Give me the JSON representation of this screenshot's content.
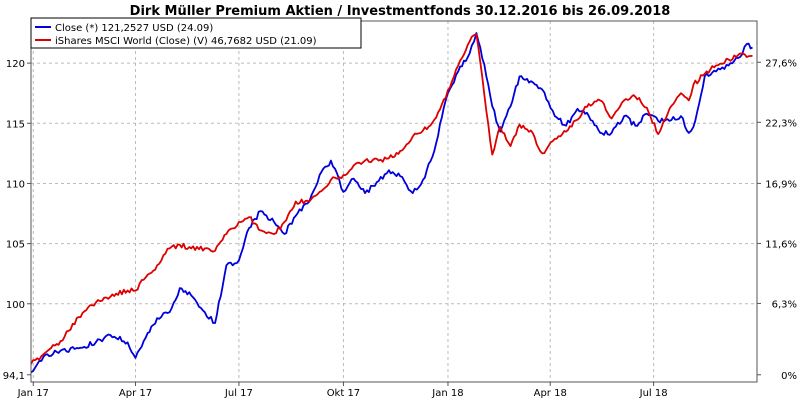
{
  "chart_data": {
    "type": "line",
    "title": "Dirk Müller Premium Aktien / Investmentfonds 30.12.2016 bis 26.09.2018",
    "xlabel": "",
    "ylabel": "",
    "x_ticks": [
      "Jan 17",
      "Apr 17",
      "Jul 17",
      "Okt 17",
      "Jan 18",
      "Apr 18",
      "Jul 18"
    ],
    "x_tick_dates": [
      "2017-01-01",
      "2017-04-01",
      "2017-07-01",
      "2017-10-01",
      "2018-01-01",
      "2018-04-01",
      "2018-07-01"
    ],
    "xlim": [
      "2016-12-30",
      "2018-09-30"
    ],
    "y_left_ticks": [
      94.1,
      100,
      105,
      110,
      115,
      120
    ],
    "y_left_tick_labels": [
      "94,1",
      "100",
      "105",
      "110",
      "115",
      "120"
    ],
    "ylim": [
      93.5,
      123.5
    ],
    "y_right_ticks": [
      0,
      6.3,
      11.6,
      16.9,
      22.3,
      27.6
    ],
    "y_right_tick_labels": [
      "0%",
      "6,3%",
      "11,6%",
      "16,9%",
      "22,3%",
      "27,6%"
    ],
    "grid": true,
    "legend_position": "top-left",
    "series": [
      {
        "name": "Close (*) 121,2527 USD (24.09)",
        "color": "#0000dd",
        "dates": [
          "2016-12-30",
          "2017-01-10",
          "2017-01-25",
          "2017-02-10",
          "2017-02-25",
          "2017-03-10",
          "2017-03-25",
          "2017-04-01",
          "2017-04-10",
          "2017-04-20",
          "2017-05-01",
          "2017-05-10",
          "2017-05-20",
          "2017-06-01",
          "2017-06-10",
          "2017-06-20",
          "2017-07-01",
          "2017-07-10",
          "2017-07-20",
          "2017-08-01",
          "2017-08-10",
          "2017-08-20",
          "2017-09-01",
          "2017-09-10",
          "2017-09-20",
          "2017-10-01",
          "2017-10-10",
          "2017-10-20",
          "2017-11-01",
          "2017-11-10",
          "2017-11-20",
          "2017-12-01",
          "2017-12-10",
          "2017-12-20",
          "2017-12-30",
          "2018-01-10",
          "2018-01-20",
          "2018-01-26",
          "2018-02-02",
          "2018-02-09",
          "2018-02-16",
          "2018-02-25",
          "2018-03-05",
          "2018-03-15",
          "2018-03-25",
          "2018-04-05",
          "2018-04-15",
          "2018-04-25",
          "2018-05-05",
          "2018-05-15",
          "2018-05-25",
          "2018-06-05",
          "2018-06-15",
          "2018-06-25",
          "2018-07-05",
          "2018-07-15",
          "2018-07-25",
          "2018-08-01",
          "2018-08-05",
          "2018-08-15",
          "2018-08-25",
          "2018-09-05",
          "2018-09-15",
          "2018-09-21",
          "2018-09-26"
        ],
        "values": [
          94.3,
          95.6,
          96.1,
          96.3,
          96.8,
          97.4,
          96.8,
          95.5,
          97.2,
          98.8,
          99.3,
          101.3,
          100.7,
          99.3,
          98.4,
          103.2,
          103.6,
          106.3,
          107.7,
          106.8,
          105.8,
          107.3,
          108.5,
          110.7,
          111.9,
          109.3,
          110.4,
          109.2,
          110.2,
          111.1,
          110.6,
          109.2,
          110.3,
          112.7,
          116.9,
          119.3,
          120.8,
          122.5,
          119.9,
          116.4,
          114.3,
          116.4,
          118.9,
          118.5,
          117.8,
          115.6,
          114.8,
          116.2,
          115.6,
          114.2,
          114.2,
          115.6,
          114.8,
          115.8,
          115.2,
          115.2,
          115.6,
          114.2,
          114.7,
          118.9,
          119.3,
          119.8,
          120.5,
          121.6,
          121.3
        ]
      },
      {
        "name": "iShares MSCI World (Close) (V) 46,7682 USD (21.09)",
        "color": "#dd0000",
        "dates": [
          "2016-12-30",
          "2017-01-10",
          "2017-01-25",
          "2017-02-10",
          "2017-02-25",
          "2017-03-10",
          "2017-03-25",
          "2017-04-01",
          "2017-04-10",
          "2017-04-20",
          "2017-05-01",
          "2017-05-10",
          "2017-05-20",
          "2017-06-01",
          "2017-06-10",
          "2017-06-20",
          "2017-07-01",
          "2017-07-10",
          "2017-07-20",
          "2017-08-01",
          "2017-08-10",
          "2017-08-20",
          "2017-09-01",
          "2017-09-10",
          "2017-09-20",
          "2017-10-01",
          "2017-10-10",
          "2017-10-20",
          "2017-11-01",
          "2017-11-10",
          "2017-11-20",
          "2017-12-01",
          "2017-12-10",
          "2017-12-20",
          "2017-12-30",
          "2018-01-10",
          "2018-01-20",
          "2018-01-26",
          "2018-02-02",
          "2018-02-09",
          "2018-02-16",
          "2018-02-25",
          "2018-03-05",
          "2018-03-15",
          "2018-03-25",
          "2018-04-05",
          "2018-04-15",
          "2018-04-25",
          "2018-05-05",
          "2018-05-15",
          "2018-05-25",
          "2018-06-05",
          "2018-06-15",
          "2018-06-25",
          "2018-07-05",
          "2018-07-15",
          "2018-07-25",
          "2018-08-01",
          "2018-08-05",
          "2018-08-15",
          "2018-08-25",
          "2018-09-05",
          "2018-09-15",
          "2018-09-21",
          "2018-09-26"
        ],
        "values": [
          95.0,
          95.8,
          96.9,
          98.9,
          100.1,
          100.6,
          101.1,
          101.1,
          102.2,
          103.2,
          104.6,
          104.9,
          104.6,
          104.6,
          104.4,
          105.8,
          106.8,
          107.2,
          106.1,
          105.8,
          106.8,
          108.5,
          108.5,
          109.3,
          110.3,
          110.7,
          111.5,
          111.9,
          111.9,
          112.1,
          112.7,
          113.9,
          114.4,
          115.3,
          117.1,
          119.8,
          121.8,
          122.4,
          117.4,
          112.4,
          114.7,
          113.1,
          114.9,
          114.4,
          112.5,
          113.7,
          114.3,
          115.3,
          116.6,
          116.9,
          115.4,
          116.9,
          117.2,
          116.3,
          114.1,
          116.2,
          117.5,
          116.9,
          118.2,
          119.1,
          119.8,
          120.3,
          120.8,
          120.5,
          120.6
        ]
      }
    ]
  }
}
